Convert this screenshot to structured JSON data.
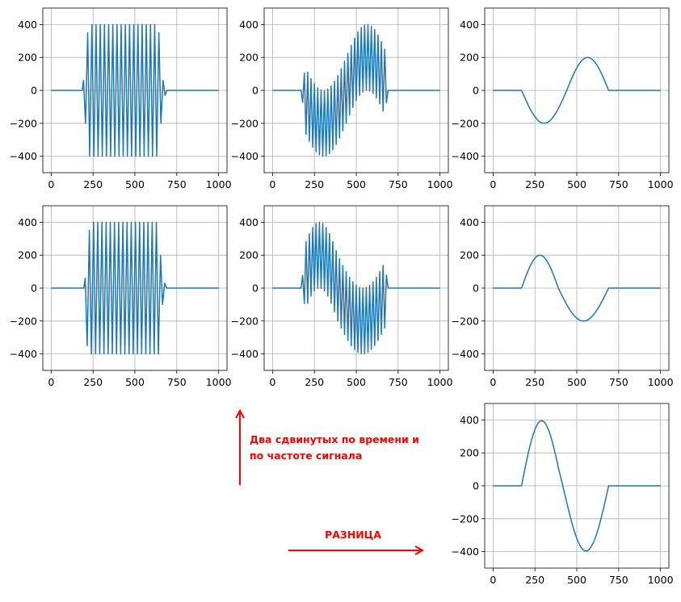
{
  "chart_data": [
    {
      "type": "line",
      "color": "#1f77b4",
      "grid": true,
      "xlim": [
        -50,
        1050
      ],
      "ylim": [
        -500,
        500
      ],
      "xticks": [
        0,
        250,
        500,
        750,
        1000
      ],
      "yticks": [
        {
          "value": -400,
          "label": "−400"
        },
        {
          "value": -200,
          "label": "−200"
        },
        0,
        200,
        400
      ],
      "x": [
        0,
        185,
        193,
        205,
        218,
        230,
        243,
        255,
        268,
        280,
        293,
        305,
        318,
        330,
        343,
        355,
        368,
        380,
        393,
        405,
        418,
        430,
        443,
        455,
        468,
        480,
        493,
        505,
        518,
        530,
        543,
        555,
        568,
        580,
        593,
        605,
        618,
        630,
        643,
        655,
        668,
        680,
        690,
        1000
      ],
      "values": [
        0,
        0,
        60,
        -200,
        350,
        -400,
        400,
        -400,
        400,
        -400,
        400,
        -400,
        400,
        -400,
        400,
        -400,
        400,
        -400,
        400,
        -400,
        400,
        -400,
        400,
        -400,
        400,
        -400,
        400,
        -400,
        400,
        -400,
        400,
        -400,
        400,
        -400,
        400,
        -400,
        400,
        -400,
        350,
        -200,
        60,
        -30,
        0,
        0
      ]
    },
    {
      "type": "line",
      "color": "#1f77b4",
      "grid": true,
      "xlim": [
        -50,
        1050
      ],
      "ylim": [
        -500,
        500
      ],
      "xticks": [
        0,
        250,
        500,
        750,
        1000
      ],
      "yticks": [
        {
          "value": -400,
          "label": "−400"
        },
        {
          "value": -200,
          "label": "−200"
        },
        0,
        200,
        400
      ],
      "x": [
        0,
        170,
        180,
        190,
        200,
        210,
        220,
        230,
        240,
        250,
        260,
        270,
        280,
        290,
        300,
        310,
        320,
        330,
        340,
        350,
        360,
        370,
        380,
        390,
        400,
        410,
        420,
        430,
        440,
        450,
        460,
        470,
        480,
        490,
        500,
        510,
        520,
        530,
        540,
        550,
        560,
        570,
        580,
        590,
        600,
        610,
        620,
        630,
        640,
        650,
        660,
        670,
        680,
        690,
        1000
      ],
      "values": [
        0,
        0,
        -73,
        104,
        -268,
        110,
        -310,
        71,
        -345,
        40,
        -373,
        16,
        -392,
        3,
        -400,
        0,
        -397,
        8,
        -384,
        27,
        -360,
        55,
        -329,
        90,
        -290,
        132,
        -246,
        177,
        -200,
        225,
        -150,
        274,
        -104,
        318,
        -63,
        354,
        -31,
        381,
        -10,
        396,
        0,
        400,
        -4,
        390,
        -19,
        369,
        -46,
        337,
        -82,
        296,
        -126,
        250,
        -75,
        0,
        0
      ]
    },
    {
      "type": "line",
      "color": "#1f77b4",
      "grid": true,
      "xlim": [
        -50,
        1050
      ],
      "ylim": [
        -500,
        500
      ],
      "xticks": [
        0,
        250,
        500,
        750,
        1000
      ],
      "yticks": [
        {
          "value": -400,
          "label": "−400"
        },
        {
          "value": -200,
          "label": "−200"
        },
        0,
        200,
        400
      ],
      "x": [
        0,
        170,
        180,
        190,
        200,
        210,
        220,
        230,
        240,
        250,
        260,
        270,
        280,
        290,
        300,
        310,
        320,
        330,
        340,
        350,
        360,
        370,
        380,
        390,
        400,
        410,
        420,
        430,
        440,
        450,
        460,
        470,
        480,
        490,
        500,
        510,
        520,
        530,
        540,
        550,
        560,
        570,
        580,
        590,
        600,
        610,
        620,
        630,
        640,
        650,
        660,
        670,
        680,
        690,
        1000
      ],
      "values": [
        0,
        0,
        -23,
        -46,
        -68,
        -90,
        -110,
        -129,
        -145,
        -160,
        -173,
        -184,
        -192,
        -197,
        -200,
        -200,
        -197,
        -192,
        -184,
        -173,
        -160,
        -145,
        -129,
        -110,
        -90,
        -68,
        -46,
        -23,
        0,
        25,
        50,
        74,
        96,
        118,
        137,
        154,
        169,
        181,
        190,
        196,
        200,
        200,
        196,
        190,
        181,
        169,
        154,
        137,
        118,
        96,
        74,
        50,
        25,
        0,
        0
      ]
    },
    {
      "type": "line",
      "color": "#1f77b4",
      "grid": true,
      "xlim": [
        -50,
        1050
      ],
      "ylim": [
        -500,
        500
      ],
      "xticks": [
        0,
        250,
        500,
        750,
        1000
      ],
      "yticks": [
        {
          "value": -400,
          "label": "−400"
        },
        {
          "value": -200,
          "label": "−200"
        },
        0,
        200,
        400
      ],
      "x": [
        0,
        195,
        203,
        215,
        228,
        240,
        253,
        265,
        278,
        290,
        303,
        315,
        328,
        340,
        353,
        365,
        378,
        390,
        403,
        415,
        428,
        440,
        453,
        465,
        478,
        490,
        503,
        515,
        528,
        540,
        553,
        565,
        578,
        590,
        603,
        615,
        628,
        640,
        653,
        665,
        678,
        690,
        1000
      ],
      "values": [
        0,
        0,
        60,
        -350,
        350,
        -400,
        400,
        -400,
        400,
        -400,
        400,
        -400,
        400,
        -400,
        400,
        -400,
        400,
        -400,
        400,
        -400,
        400,
        -400,
        400,
        -400,
        400,
        -400,
        400,
        -400,
        400,
        -400,
        400,
        -400,
        400,
        -400,
        400,
        -400,
        400,
        -400,
        200,
        -100,
        30,
        0,
        0
      ]
    },
    {
      "type": "line",
      "color": "#1f77b4",
      "grid": true,
      "xlim": [
        -50,
        1050
      ],
      "ylim": [
        -500,
        500
      ],
      "xticks": [
        0,
        250,
        500,
        750,
        1000
      ],
      "yticks": [
        {
          "value": -400,
          "label": "−400"
        },
        {
          "value": -200,
          "label": "−200"
        },
        0,
        200,
        400
      ],
      "x": [
        0,
        170,
        180,
        190,
        200,
        210,
        220,
        230,
        240,
        250,
        260,
        270,
        280,
        290,
        300,
        310,
        320,
        330,
        340,
        350,
        360,
        370,
        380,
        390,
        400,
        410,
        420,
        430,
        440,
        450,
        460,
        470,
        480,
        490,
        500,
        510,
        520,
        530,
        540,
        550,
        560,
        570,
        580,
        590,
        600,
        610,
        620,
        630,
        640,
        650,
        660,
        670,
        680,
        690,
        1000
      ],
      "values": [
        0,
        0,
        78,
        -94,
        283,
        -92,
        331,
        -49,
        368,
        -18,
        392,
        -2,
        400,
        -2,
        392,
        -18,
        368,
        -49,
        331,
        -92,
        283,
        -144,
        228,
        -200,
        179,
        -242,
        138,
        -281,
        100,
        -318,
        66,
        -349,
        38,
        -373,
        17,
        -390,
        4,
        -399,
        0,
        -399,
        4,
        -390,
        17,
        -373,
        38,
        -349,
        66,
        -318,
        100,
        -281,
        138,
        -242,
        79,
        0,
        0
      ]
    },
    {
      "type": "line",
      "color": "#1f77b4",
      "grid": true,
      "xlim": [
        -50,
        1050
      ],
      "ylim": [
        -500,
        500
      ],
      "xticks": [
        0,
        250,
        500,
        750,
        1000
      ],
      "yticks": [
        {
          "value": -400,
          "label": "−400"
        },
        {
          "value": -200,
          "label": "−200"
        },
        0,
        200,
        400
      ],
      "x": [
        0,
        170,
        180,
        190,
        200,
        210,
        220,
        230,
        240,
        250,
        260,
        270,
        280,
        290,
        300,
        310,
        320,
        330,
        340,
        350,
        360,
        370,
        380,
        390,
        400,
        410,
        420,
        430,
        440,
        450,
        460,
        470,
        480,
        490,
        500,
        510,
        520,
        530,
        540,
        550,
        560,
        570,
        580,
        590,
        600,
        610,
        620,
        630,
        640,
        650,
        660,
        670,
        680,
        690,
        1000
      ],
      "values": [
        0,
        0,
        28,
        56,
        83,
        108,
        131,
        151,
        168,
        182,
        192,
        198,
        200,
        198,
        192,
        182,
        168,
        151,
        131,
        108,
        83,
        56,
        28,
        0,
        -21,
        -42,
        -62,
        -81,
        -100,
        -118,
        -134,
        -149,
        -162,
        -173,
        -183,
        -190,
        -196,
        -199,
        -200,
        -199,
        -196,
        -190,
        -183,
        -173,
        -162,
        -149,
        -134,
        -118,
        -100,
        -81,
        -62,
        -42,
        -21,
        0,
        0
      ]
    },
    {
      "type": "line",
      "color": "#1f77b4",
      "grid": true,
      "xlim": [
        -50,
        1050
      ],
      "ylim": [
        -500,
        500
      ],
      "xticks": [
        0,
        250,
        500,
        750,
        1000
      ],
      "yticks": [
        {
          "value": -400,
          "label": "−400"
        },
        {
          "value": -200,
          "label": "−200"
        },
        0,
        200,
        400
      ],
      "x": [
        0,
        170,
        180,
        190,
        200,
        210,
        220,
        230,
        240,
        250,
        260,
        270,
        280,
        290,
        300,
        310,
        320,
        330,
        340,
        350,
        360,
        370,
        380,
        390,
        400,
        410,
        420,
        430,
        440,
        450,
        460,
        470,
        480,
        490,
        500,
        510,
        520,
        530,
        540,
        550,
        560,
        570,
        580,
        590,
        600,
        610,
        620,
        630,
        640,
        650,
        660,
        670,
        680,
        690,
        1000
      ],
      "values": [
        0,
        0,
        51,
        102,
        151,
        198,
        241,
        280,
        313,
        342,
        365,
        382,
        392,
        395,
        392,
        382,
        365,
        343,
        315,
        281,
        243,
        201,
        157,
        110,
        69,
        26,
        -16,
        -58,
        -100,
        -143,
        -184,
        -223,
        -258,
        -291,
        -320,
        -344,
        -365,
        -380,
        -390,
        -395,
        -396,
        -390,
        -379,
        -363,
        -343,
        -318,
        -288,
        -255,
        -218,
        -177,
        -136,
        -92,
        -46,
        0,
        0
      ]
    }
  ],
  "annotations": {
    "arrow_text": [
      "Два сдвинутых по времени и",
      "по частоте сигнала"
    ],
    "difference": "РАЗНИЦА"
  }
}
